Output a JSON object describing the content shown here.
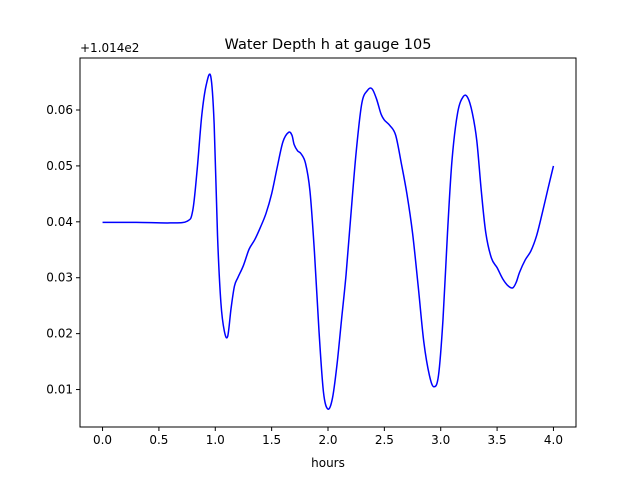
{
  "chart_data": {
    "type": "line",
    "title": "Water Depth h at gauge 105",
    "xlabel": "hours",
    "ylabel": "",
    "offset_label": "+1.014e2",
    "xlim": [
      -0.2,
      4.2
    ],
    "ylim": [
      0.0033,
      0.0693
    ],
    "xticks": [
      0.0,
      0.5,
      1.0,
      1.5,
      2.0,
      2.5,
      3.0,
      3.5,
      4.0
    ],
    "xtick_labels": [
      "0.0",
      "0.5",
      "1.0",
      "1.5",
      "2.0",
      "2.5",
      "3.0",
      "3.5",
      "4.0"
    ],
    "yticks": [
      0.01,
      0.02,
      0.03,
      0.04,
      0.05,
      0.06
    ],
    "ytick_labels": [
      "0.01",
      "0.02",
      "0.03",
      "0.04",
      "0.05",
      "0.06"
    ],
    "grid": false,
    "series": [
      {
        "color": "#0000ff",
        "x": [
          0.0,
          0.3,
          0.6,
          0.75,
          0.8,
          0.84,
          0.88,
          0.92,
          0.96,
          0.99,
          1.02,
          1.05,
          1.08,
          1.11,
          1.14,
          1.17,
          1.2,
          1.25,
          1.3,
          1.35,
          1.4,
          1.45,
          1.5,
          1.55,
          1.6,
          1.65,
          1.68,
          1.7,
          1.73,
          1.76,
          1.8,
          1.84,
          1.88,
          1.92,
          1.96,
          2.0,
          2.04,
          2.08,
          2.12,
          2.16,
          2.2,
          2.25,
          2.3,
          2.35,
          2.39,
          2.43,
          2.47,
          2.5,
          2.55,
          2.6,
          2.65,
          2.7,
          2.75,
          2.8,
          2.85,
          2.9,
          2.94,
          2.98,
          3.02,
          3.06,
          3.1,
          3.15,
          3.2,
          3.24,
          3.28,
          3.32,
          3.36,
          3.4,
          3.45,
          3.5,
          3.55,
          3.6,
          3.64,
          3.67,
          3.7,
          3.75,
          3.8,
          3.85,
          3.9,
          3.95,
          4.0
        ],
        "y": [
          0.0399,
          0.0399,
          0.0398,
          0.0401,
          0.042,
          0.0495,
          0.059,
          0.0645,
          0.066,
          0.0575,
          0.0375,
          0.0255,
          0.0205,
          0.0195,
          0.0245,
          0.0285,
          0.03,
          0.0322,
          0.0351,
          0.0368,
          0.039,
          0.0415,
          0.045,
          0.0498,
          0.0543,
          0.056,
          0.0555,
          0.0538,
          0.0527,
          0.0522,
          0.0505,
          0.0455,
          0.0345,
          0.0205,
          0.0095,
          0.0065,
          0.0085,
          0.0145,
          0.0225,
          0.0305,
          0.0405,
          0.0525,
          0.0612,
          0.0635,
          0.0638,
          0.062,
          0.0593,
          0.0582,
          0.0572,
          0.0555,
          0.0505,
          0.045,
          0.038,
          0.0285,
          0.0185,
          0.0125,
          0.0105,
          0.0125,
          0.0225,
          0.038,
          0.051,
          0.0595,
          0.0624,
          0.0622,
          0.0595,
          0.0545,
          0.0455,
          0.038,
          0.0335,
          0.0318,
          0.0298,
          0.0285,
          0.0282,
          0.0292,
          0.031,
          0.0332,
          0.0348,
          0.0375,
          0.0415,
          0.0458,
          0.05
        ]
      }
    ]
  }
}
